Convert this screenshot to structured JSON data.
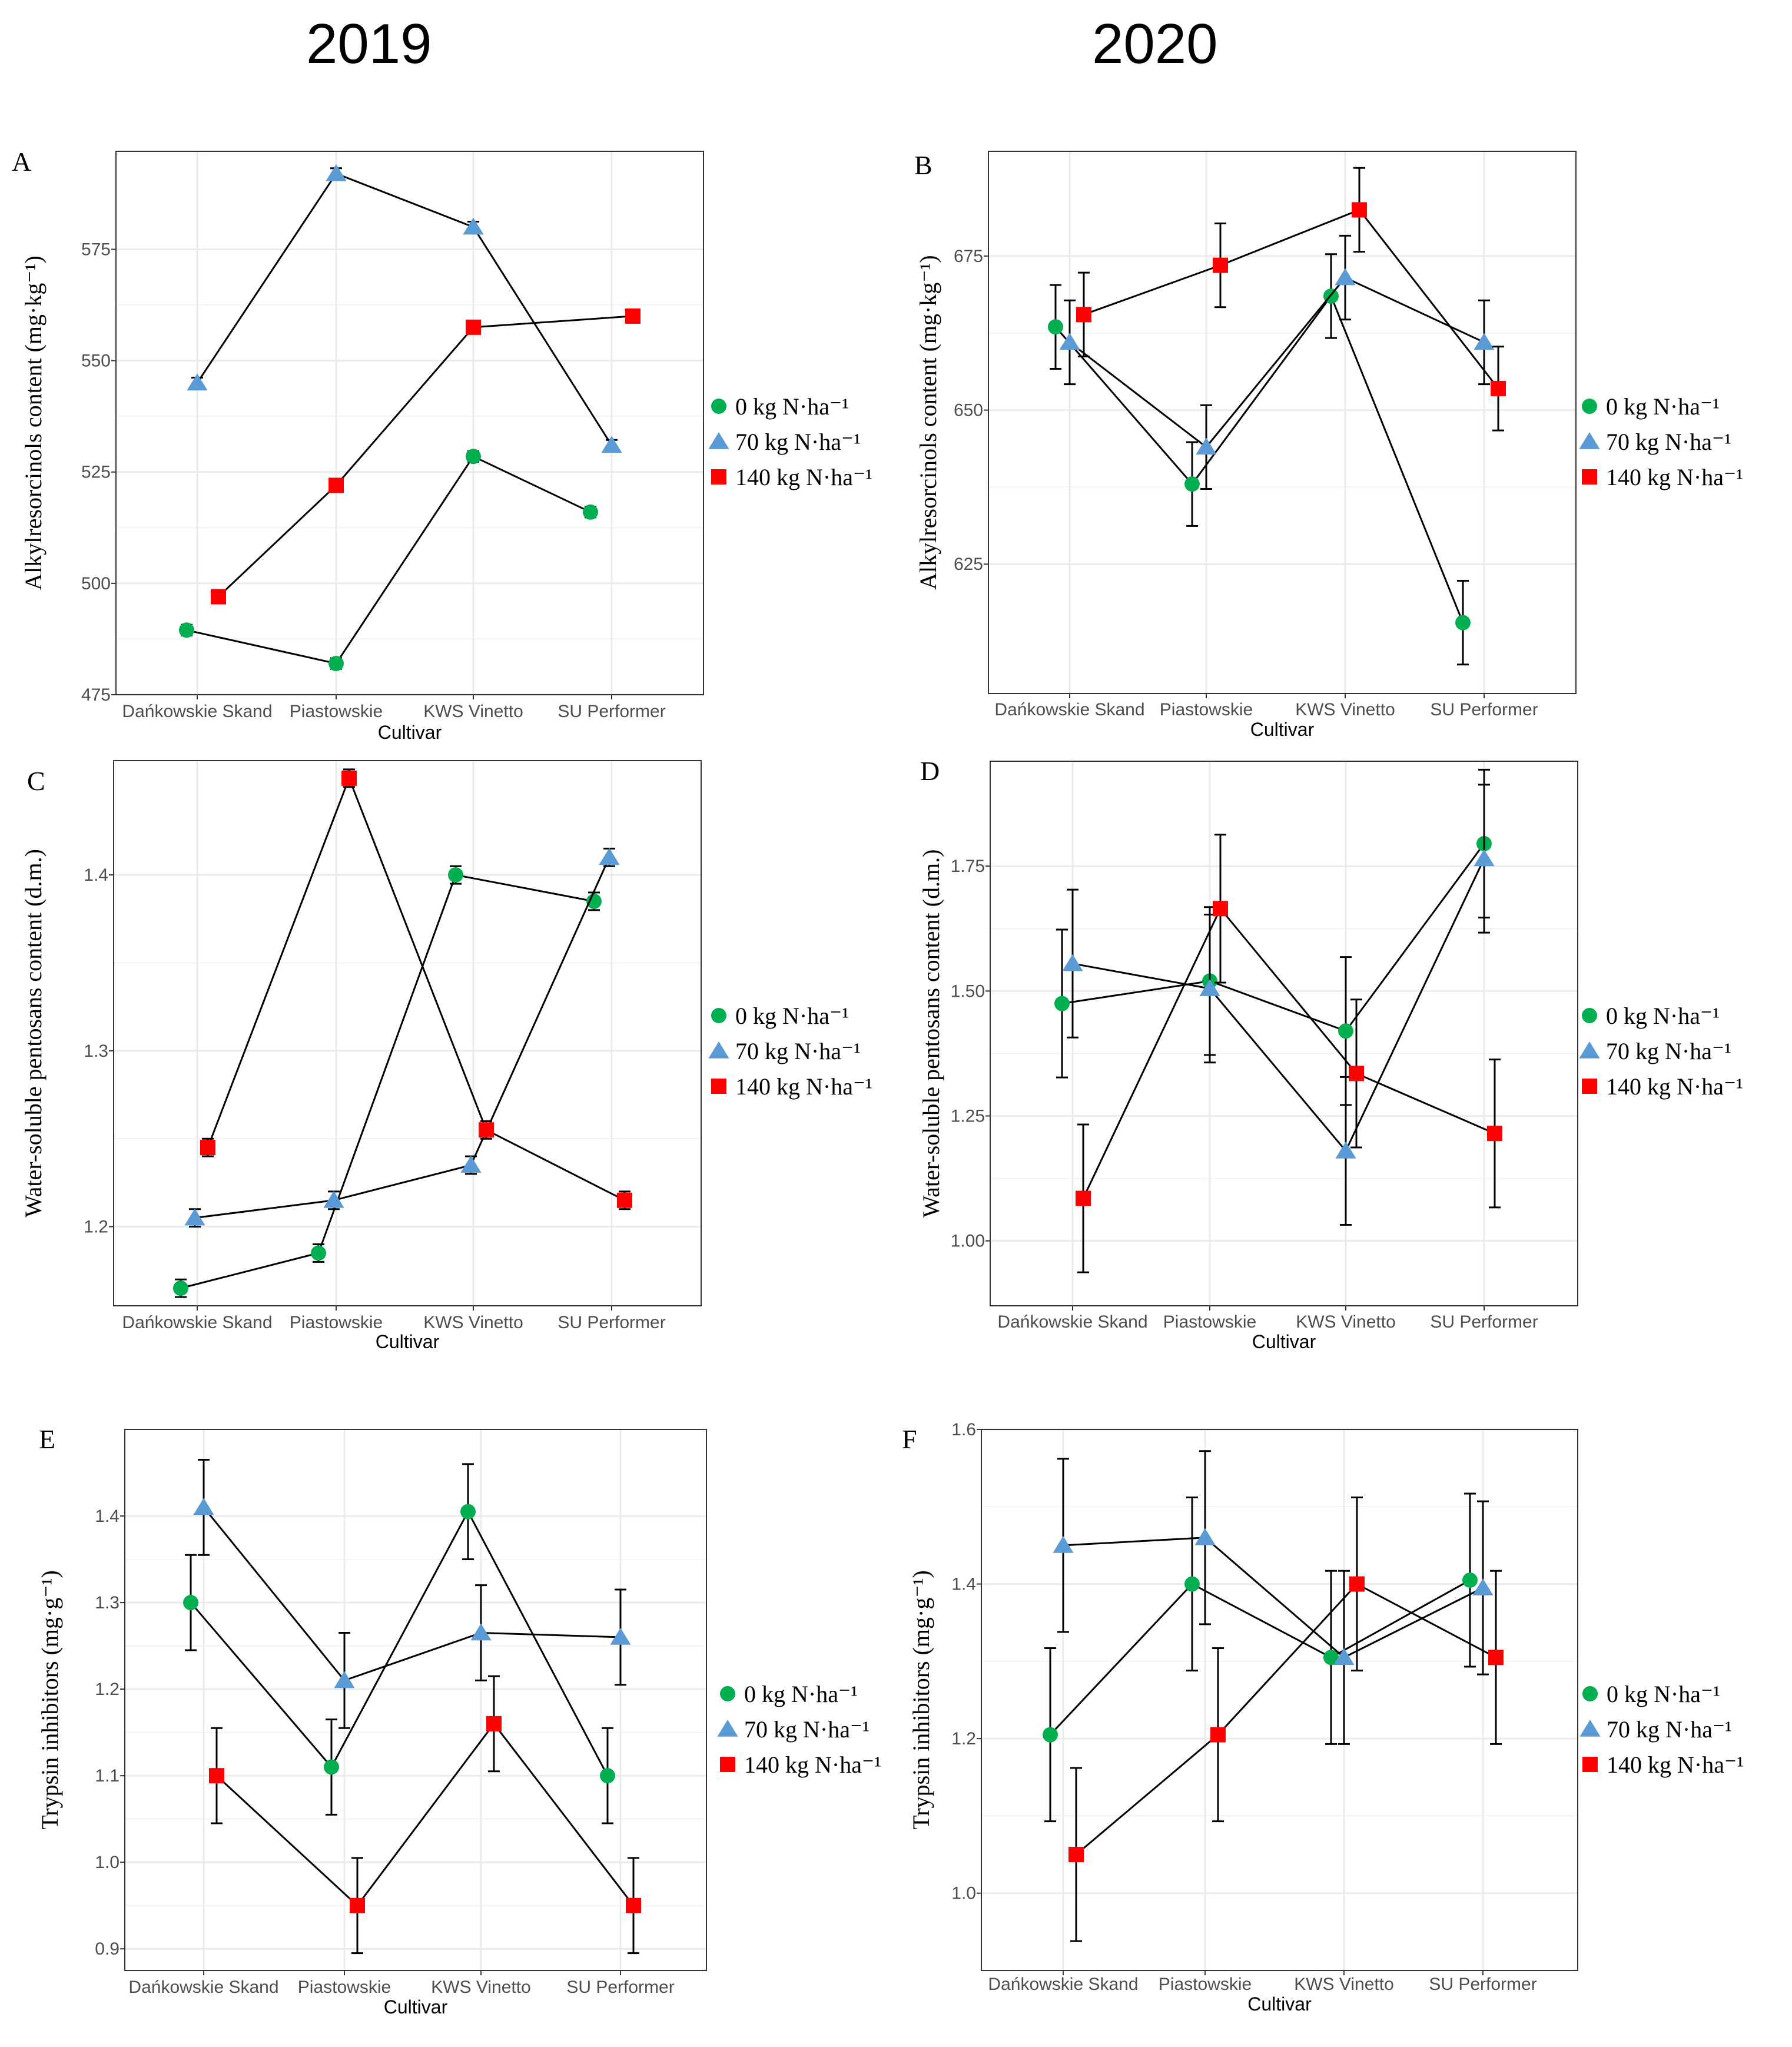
{
  "years": [
    "2019",
    "2020"
  ],
  "legend": [
    "0 kg N·ha⁻¹",
    "70 kg N·ha⁻¹",
    "140 kg N·ha⁻¹"
  ],
  "colors": {
    "n0": "#00b050",
    "n70": "#5b9bd5",
    "n140": "#ff0000",
    "line": "#000000",
    "grid": "#ebebeb",
    "frame": "#333333"
  },
  "chart_data": [
    {
      "type": "line",
      "panel": "A",
      "year": "2019",
      "title": "",
      "xlabel": "Cultivar",
      "ylabel": "Alkylresorcinols content (mg·kg⁻¹)",
      "categories": [
        "Dańkowskie Skand",
        "Piastowskie",
        "KWS Vinetto",
        "SU Performer"
      ],
      "ylim": [
        475,
        597
      ],
      "yticks": [
        475,
        500,
        525,
        550,
        575
      ],
      "ytick_labels": [
        "475",
        "500",
        "525",
        "550",
        "575"
      ],
      "series": [
        {
          "name": "0 kg N·ha⁻¹",
          "values": [
            489.5,
            482,
            528.5,
            516
          ],
          "errors": [
            1.2,
            1.2,
            1.2,
            1.2
          ]
        },
        {
          "name": "70 kg N·ha⁻¹",
          "values": [
            545,
            592,
            580,
            531
          ],
          "errors": [
            1.2,
            1.2,
            1.2,
            1.2
          ]
        },
        {
          "name": "140 kg N·ha⁻¹",
          "values": [
            497,
            522,
            557.5,
            560
          ],
          "errors": [
            1.2,
            1.2,
            1.2,
            1.2
          ]
        }
      ]
    },
    {
      "type": "line",
      "panel": "B",
      "year": "2020",
      "title": "",
      "xlabel": "Cultivar",
      "ylabel": "Alkylresorcinols content (mg·kg⁻¹)",
      "categories": [
        "Dańkowskie Skand",
        "Piastowskie",
        "KWS Vinetto",
        "SU Performer"
      ],
      "ylim": [
        604,
        692
      ],
      "yticks": [
        625,
        650,
        675
      ],
      "ytick_labels": [
        "625",
        "650",
        "675"
      ],
      "series": [
        {
          "name": "0 kg N·ha⁻¹",
          "values": [
            663.5,
            638,
            668.5,
            615.5
          ],
          "errors": [
            6.8,
            6.8,
            6.8,
            6.8
          ]
        },
        {
          "name": "70 kg N·ha⁻¹",
          "values": [
            661,
            644,
            671.5,
            661
          ],
          "errors": [
            6.8,
            6.8,
            6.8,
            6.8
          ]
        },
        {
          "name": "140 kg N·ha⁻¹",
          "values": [
            665.5,
            673.5,
            682.5,
            653.5
          ],
          "errors": [
            6.8,
            6.8,
            6.8,
            6.8
          ]
        }
      ]
    },
    {
      "type": "line",
      "panel": "C",
      "year": "2019",
      "title": "",
      "xlabel": "Cultivar",
      "ylabel": "Water-soluble pentosans content (d.m.)",
      "categories": [
        "Dańkowskie Skand",
        "Piastowskie",
        "KWS Vinetto",
        "SU Performer"
      ],
      "ylim": [
        1.155,
        1.465
      ],
      "yticks": [
        1.2,
        1.3,
        1.4
      ],
      "ytick_labels": [
        "1.2",
        "1.3",
        "1.4"
      ],
      "series": [
        {
          "name": "0 kg N·ha⁻¹",
          "values": [
            1.165,
            1.185,
            1.4,
            1.385
          ],
          "errors": [
            0.005,
            0.005,
            0.005,
            0.005
          ]
        },
        {
          "name": "70 kg N·ha⁻¹",
          "values": [
            1.205,
            1.215,
            1.235,
            1.41
          ],
          "errors": [
            0.005,
            0.005,
            0.005,
            0.005
          ]
        },
        {
          "name": "140 kg N·ha⁻¹",
          "values": [
            1.245,
            1.455,
            1.255,
            1.215
          ],
          "errors": [
            0.005,
            0.005,
            0.005,
            0.005
          ]
        }
      ]
    },
    {
      "type": "line",
      "panel": "D",
      "year": "2020",
      "title": "",
      "xlabel": "Cultivar",
      "ylabel": "Water-soluble pentosans content (d.m.)",
      "categories": [
        "Dańkowskie Skand",
        "Piastowskie",
        "KWS Vinetto",
        "SU Performer"
      ],
      "ylim": [
        0.87,
        1.96
      ],
      "yticks": [
        1.0,
        1.25,
        1.5,
        1.75
      ],
      "ytick_labels": [
        "1.00",
        "1.25",
        "1.50",
        "1.75"
      ],
      "series": [
        {
          "name": "0 kg N·ha⁻¹",
          "values": [
            1.475,
            1.52,
            1.42,
            1.795
          ],
          "errors": [
            0.148,
            0.148,
            0.148,
            0.148
          ]
        },
        {
          "name": "70 kg N·ha⁻¹",
          "values": [
            1.555,
            1.505,
            1.18,
            1.765
          ],
          "errors": [
            0.148,
            0.148,
            0.148,
            0.148
          ]
        },
        {
          "name": "140 kg N·ha⁻¹",
          "values": [
            1.085,
            1.665,
            1.335,
            1.215
          ],
          "errors": [
            0.148,
            0.148,
            0.148,
            0.148
          ]
        }
      ]
    },
    {
      "type": "line",
      "panel": "E",
      "year": "2019",
      "title": "",
      "xlabel": "Cultivar",
      "ylabel": "Trypsin inhibitors (mg·g⁻¹)",
      "categories": [
        "Dańkowskie Skand",
        "Piastowskie",
        "KWS Vinetto",
        "SU Performer"
      ],
      "ylim": [
        0.875,
        1.5
      ],
      "yticks": [
        0.9,
        1.0,
        1.1,
        1.2,
        1.3,
        1.4
      ],
      "ytick_labels": [
        "0.9",
        "1.0",
        "1.1",
        "1.2",
        "1.3",
        "1.4"
      ],
      "series": [
        {
          "name": "0 kg N·ha⁻¹",
          "values": [
            1.3,
            1.11,
            1.405,
            1.1
          ],
          "errors": [
            0.055,
            0.055,
            0.055,
            0.055
          ]
        },
        {
          "name": "70 kg N·ha⁻¹",
          "values": [
            1.41,
            1.21,
            1.265,
            1.26
          ],
          "errors": [
            0.055,
            0.055,
            0.055,
            0.055
          ]
        },
        {
          "name": "140 kg N·ha⁻¹",
          "values": [
            1.1,
            0.95,
            1.16,
            0.95
          ],
          "errors": [
            0.055,
            0.055,
            0.055,
            0.055
          ]
        }
      ]
    },
    {
      "type": "line",
      "panel": "F",
      "year": "2020",
      "title": "",
      "xlabel": "Cultivar",
      "ylabel": "Trypsin inhibitors (mg·g⁻¹)",
      "categories": [
        "Dańkowskie Skand",
        "Piastowskie",
        "KWS Vinetto",
        "SU Performer"
      ],
      "ylim": [
        0.9,
        1.6
      ],
      "yticks": [
        1.0,
        1.2,
        1.4,
        1.6
      ],
      "ytick_labels": [
        "1.0",
        "1.2",
        "1.4",
        "1.6"
      ],
      "series": [
        {
          "name": "0 kg N·ha⁻¹",
          "values": [
            1.205,
            1.4,
            1.305,
            1.405
          ],
          "errors": [
            0.112,
            0.112,
            0.112,
            0.112
          ]
        },
        {
          "name": "70 kg N·ha⁻¹",
          "values": [
            1.45,
            1.46,
            1.305,
            1.395
          ],
          "errors": [
            0.112,
            0.112,
            0.112,
            0.112
          ]
        },
        {
          "name": "140 kg N·ha⁻¹",
          "values": [
            1.05,
            1.205,
            1.4,
            1.305
          ],
          "errors": [
            0.112,
            0.112,
            0.112,
            0.112
          ]
        }
      ]
    }
  ]
}
